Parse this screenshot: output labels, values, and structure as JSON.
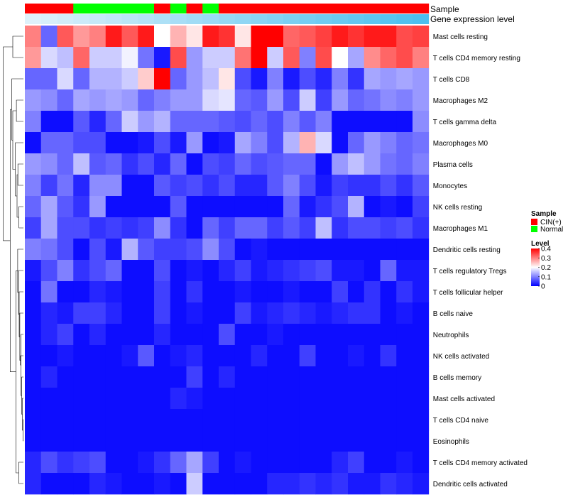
{
  "chart_data": {
    "type": "heatmap",
    "annotation_labels": {
      "sample": "Sample",
      "expression": "Gene expression level"
    },
    "rows": [
      "Mast cells resting",
      "T cells CD4 memory resting",
      "T cells CD8",
      "Macrophages M2",
      "T cells gamma delta",
      "Macrophages M0",
      "Plasma cells",
      "Monocytes",
      "NK cells resting",
      "Macrophages M1",
      "Dendritic cells resting",
      "T cells regulatory  Tregs",
      "T cells follicular helper",
      "B cells naive",
      "Neutrophils",
      "NK cells activated",
      "B cells memory",
      "Mast cells activated",
      "T cells CD4 naive",
      "Eosinophils",
      "T cells CD4 memory activated",
      "Dendritic cells activated"
    ],
    "sample_groups": [
      "CIN(+)",
      "CIN(+)",
      "CIN(+)",
      "Normal",
      "Normal",
      "Normal",
      "Normal",
      "Normal",
      "CIN(+)",
      "Normal",
      "CIN(+)",
      "Normal",
      "CIN(+)",
      "CIN(+)",
      "CIN(+)",
      "CIN(+)",
      "CIN(+)",
      "CIN(+)",
      "CIN(+)",
      "CIN(+)",
      "CIN(+)",
      "CIN(+)",
      "CIN(+)",
      "CIN(+)",
      "CIN(+)"
    ],
    "expression_level": [
      0.05,
      0.09,
      0.13,
      0.17,
      0.21,
      0.25,
      0.29,
      0.33,
      0.37,
      0.41,
      0.45,
      0.49,
      0.53,
      0.57,
      0.61,
      0.65,
      0.69,
      0.73,
      0.77,
      0.81,
      0.85,
      0.89,
      0.93,
      0.97,
      1.0
    ],
    "values": [
      [
        0.3,
        0.08,
        0.33,
        0.28,
        0.3,
        0.38,
        0.33,
        0.38,
        0.2,
        0.26,
        0.22,
        0.38,
        0.36,
        0.22,
        0.4,
        0.4,
        0.32,
        0.33,
        0.35,
        0.38,
        0.36,
        0.38,
        0.38,
        0.34,
        0.35
      ],
      [
        0.28,
        0.17,
        0.15,
        0.32,
        0.16,
        0.16,
        0.19,
        0.09,
        0.02,
        0.34,
        0.12,
        0.16,
        0.16,
        0.31,
        0.4,
        0.16,
        0.33,
        0.1,
        0.34,
        0.2,
        0.13,
        0.29,
        0.32,
        0.34,
        0.3
      ],
      [
        0.08,
        0.08,
        0.17,
        0.08,
        0.14,
        0.14,
        0.16,
        0.24,
        0.4,
        0.08,
        0.12,
        0.15,
        0.22,
        0.06,
        0.02,
        0.1,
        0.02,
        0.06,
        0.03,
        0.1,
        0.04,
        0.13,
        0.12,
        0.13,
        0.12
      ],
      [
        0.12,
        0.11,
        0.08,
        0.13,
        0.12,
        0.13,
        0.12,
        0.08,
        0.1,
        0.12,
        0.12,
        0.17,
        0.18,
        0.08,
        0.07,
        0.12,
        0.06,
        0.16,
        0.05,
        0.12,
        0.08,
        0.09,
        0.11,
        0.1,
        0.12
      ],
      [
        0.1,
        0.01,
        0.01,
        0.07,
        0.03,
        0.08,
        0.16,
        0.12,
        0.14,
        0.08,
        0.08,
        0.08,
        0.07,
        0.06,
        0.08,
        0.06,
        0.1,
        0.07,
        0.1,
        0.01,
        0.01,
        0.01,
        0.01,
        0.01,
        0.11
      ],
      [
        0.01,
        0.08,
        0.08,
        0.06,
        0.06,
        0.01,
        0.01,
        0.02,
        0.06,
        0.02,
        0.12,
        0.01,
        0.02,
        0.13,
        0.1,
        0.06,
        0.14,
        0.26,
        0.17,
        0.01,
        0.08,
        0.12,
        0.1,
        0.08,
        0.09
      ],
      [
        0.12,
        0.11,
        0.08,
        0.15,
        0.07,
        0.08,
        0.04,
        0.06,
        0.03,
        0.08,
        0.01,
        0.06,
        0.05,
        0.08,
        0.06,
        0.07,
        0.08,
        0.08,
        0.01,
        0.12,
        0.15,
        0.12,
        0.09,
        0.08,
        0.1
      ],
      [
        0.1,
        0.05,
        0.09,
        0.03,
        0.11,
        0.11,
        0.01,
        0.01,
        0.07,
        0.05,
        0.06,
        0.04,
        0.06,
        0.03,
        0.03,
        0.07,
        0.1,
        0.06,
        0.02,
        0.05,
        0.04,
        0.04,
        0.06,
        0.04,
        0.07
      ],
      [
        0.08,
        0.13,
        0.07,
        0.04,
        0.12,
        0.01,
        0.01,
        0.01,
        0.01,
        0.07,
        0.01,
        0.01,
        0.01,
        0.01,
        0.01,
        0.01,
        0.08,
        0.02,
        0.04,
        0.06,
        0.14,
        0.01,
        0.02,
        0.01,
        0.05
      ],
      [
        0.05,
        0.13,
        0.06,
        0.06,
        0.04,
        0.05,
        0.04,
        0.05,
        0.11,
        0.04,
        0.01,
        0.08,
        0.05,
        0.08,
        0.08,
        0.05,
        0.07,
        0.05,
        0.15,
        0.04,
        0.06,
        0.06,
        0.05,
        0.06,
        0.04
      ],
      [
        0.1,
        0.09,
        0.06,
        0.01,
        0.06,
        0.02,
        0.14,
        0.07,
        0.05,
        0.05,
        0.06,
        0.11,
        0.06,
        0.01,
        0.02,
        0.01,
        0.01,
        0.01,
        0.01,
        0.01,
        0.01,
        0.01,
        0.01,
        0.01,
        0.01
      ],
      [
        0.02,
        0.06,
        0.1,
        0.04,
        0.06,
        0.08,
        0.01,
        0.01,
        0.06,
        0.01,
        0.02,
        0.01,
        0.03,
        0.05,
        0.02,
        0.03,
        0.04,
        0.05,
        0.06,
        0.02,
        0.02,
        0.01,
        0.08,
        0.02,
        0.02
      ],
      [
        0.01,
        0.09,
        0.01,
        0.01,
        0.03,
        0.02,
        0.01,
        0.01,
        0.05,
        0.01,
        0.04,
        0.01,
        0.01,
        0.02,
        0.01,
        0.01,
        0.02,
        0.01,
        0.01,
        0.05,
        0.01,
        0.04,
        0.01,
        0.04,
        0.02
      ],
      [
        0.01,
        0.03,
        0.02,
        0.05,
        0.05,
        0.03,
        0.01,
        0.01,
        0.05,
        0.01,
        0.02,
        0.01,
        0.01,
        0.05,
        0.02,
        0.03,
        0.04,
        0.03,
        0.02,
        0.03,
        0.04,
        0.04,
        0.01,
        0.02,
        0.01
      ],
      [
        0.01,
        0.03,
        0.05,
        0.01,
        0.03,
        0.01,
        0.01,
        0.01,
        0.03,
        0.01,
        0.01,
        0.01,
        0.06,
        0.01,
        0.01,
        0.02,
        0.01,
        0.01,
        0.01,
        0.01,
        0.01,
        0.01,
        0.01,
        0.01,
        0.01
      ],
      [
        0.01,
        0.01,
        0.02,
        0.01,
        0.01,
        0.01,
        0.02,
        0.07,
        0.01,
        0.02,
        0.03,
        0.01,
        0.01,
        0.01,
        0.03,
        0.01,
        0.01,
        0.05,
        0.01,
        0.01,
        0.02,
        0.01,
        0.04,
        0.01,
        0.01
      ],
      [
        0.01,
        0.03,
        0.01,
        0.01,
        0.01,
        0.01,
        0.01,
        0.01,
        0.01,
        0.01,
        0.05,
        0.01,
        0.03,
        0.01,
        0.01,
        0.01,
        0.01,
        0.01,
        0.01,
        0.01,
        0.01,
        0.01,
        0.01,
        0.01,
        0.01
      ],
      [
        0.01,
        0.01,
        0.01,
        0.01,
        0.01,
        0.01,
        0.01,
        0.01,
        0.01,
        0.03,
        0.02,
        0.01,
        0.01,
        0.01,
        0.01,
        0.01,
        0.01,
        0.01,
        0.01,
        0.01,
        0.01,
        0.01,
        0.01,
        0.01,
        0.01
      ],
      [
        0.01,
        0.01,
        0.01,
        0.01,
        0.01,
        0.01,
        0.01,
        0.01,
        0.01,
        0.01,
        0.01,
        0.01,
        0.01,
        0.01,
        0.01,
        0.01,
        0.01,
        0.01,
        0.01,
        0.01,
        0.01,
        0.01,
        0.01,
        0.01,
        0.01
      ],
      [
        0.01,
        0.01,
        0.01,
        0.01,
        0.01,
        0.01,
        0.01,
        0.01,
        0.01,
        0.01,
        0.01,
        0.01,
        0.01,
        0.01,
        0.01,
        0.01,
        0.01,
        0.01,
        0.01,
        0.01,
        0.01,
        0.01,
        0.01,
        0.01,
        0.01
      ],
      [
        0.03,
        0.06,
        0.04,
        0.05,
        0.06,
        0.01,
        0.01,
        0.02,
        0.04,
        0.08,
        0.13,
        0.05,
        0.01,
        0.02,
        0.01,
        0.01,
        0.01,
        0.01,
        0.01,
        0.03,
        0.05,
        0.01,
        0.01,
        0.02,
        0.01
      ],
      [
        0.03,
        0.01,
        0.01,
        0.01,
        0.03,
        0.02,
        0.01,
        0.01,
        0.02,
        0.01,
        0.16,
        0.01,
        0.01,
        0.01,
        0.01,
        0.03,
        0.03,
        0.04,
        0.03,
        0.04,
        0.02,
        0.02,
        0.04,
        0.03,
        0.02
      ]
    ],
    "color_scale": {
      "low": "#0000ff",
      "mid": "#ffffff",
      "high": "#ff0000",
      "min": 0,
      "mid_value": 0.2,
      "max": 0.4
    },
    "legend": {
      "sample_title": "Sample",
      "sample_items": [
        {
          "label": "CIN(+)",
          "color": "#ff0000"
        },
        {
          "label": "Normal",
          "color": "#00ff00"
        }
      ],
      "level_title": "Level",
      "level_ticks": [
        "0.4",
        "0.3",
        "0.2",
        "0.1",
        "0"
      ]
    },
    "expression_colors": {
      "low": "#e6f4fb",
      "high": "#4dbfee"
    },
    "dendrogram": {
      "merges": [
        [
          18,
          19
        ],
        [
          17,
          -1
        ],
        [
          16,
          -2
        ],
        [
          14,
          -3
        ],
        [
          15,
          -4
        ],
        [
          13,
          -5
        ],
        [
          12,
          -6
        ],
        [
          11,
          -7
        ],
        [
          10,
          -8
        ],
        [
          20,
          21
        ],
        [
          -9,
          -10
        ],
        [
          8,
          9
        ],
        [
          6,
          7
        ],
        [
          -12,
          -13
        ],
        [
          5,
          -14
        ],
        [
          3,
          4
        ],
        [
          -15,
          -16
        ],
        [
          2,
          -17
        ],
        [
          -18,
          -11
        ],
        [
          0,
          1
        ],
        [
          -20,
          -19
        ]
      ],
      "heights": [
        0.02,
        0.05,
        0.08,
        0.11,
        0.14,
        0.17,
        0.2,
        0.23,
        0.27,
        0.22,
        0.35,
        0.21,
        0.26,
        0.3,
        0.38,
        0.33,
        0.5,
        0.55,
        0.62,
        0.5,
        0.95
      ]
    }
  }
}
